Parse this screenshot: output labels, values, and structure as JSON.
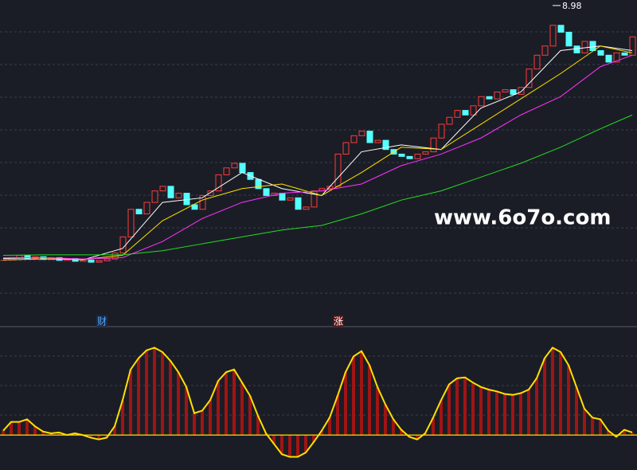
{
  "chart_data": [
    {
      "type": "candlestick",
      "values": [
        3.45,
        3.5,
        3.55,
        3.48,
        3.52,
        3.46,
        3.5,
        3.44,
        3.48,
        3.42,
        3.45,
        3.4,
        3.43,
        3.47,
        3.6,
        3.95,
        4.55,
        4.45,
        4.7,
        4.95,
        5.05,
        4.8,
        4.9,
        4.65,
        4.55,
        4.85,
        4.95,
        5.3,
        5.45,
        5.55,
        5.35,
        5.2,
        5.0,
        4.85,
        4.9,
        4.75,
        4.8,
        4.55,
        4.6,
        4.95,
        5.0,
        5.05,
        5.75,
        6.0,
        6.15,
        6.25,
        6.0,
        6.05,
        5.85,
        5.75,
        5.7,
        5.65,
        5.75,
        5.8,
        6.1,
        6.4,
        6.55,
        6.7,
        6.6,
        6.8,
        7.0,
        6.95,
        7.1,
        7.15,
        7.05,
        7.2,
        7.6,
        7.9,
        8.1,
        8.55,
        8.4,
        8.1,
        7.95,
        8.2,
        8.0,
        7.9,
        7.75,
        7.95,
        7.9,
        8.3
      ],
      "up_color": "#ff3b3b",
      "down_color": "#54ffff",
      "ylim": [
        2.0,
        9.1
      ],
      "ma_x": [
        0,
        5,
        10,
        15,
        20,
        25,
        30,
        35,
        40,
        45,
        50,
        55,
        60,
        65,
        70,
        75,
        79
      ],
      "ma": [
        {
          "color": "#ffffff",
          "values": [
            3.48,
            3.5,
            3.45,
            3.7,
            4.7,
            4.8,
            5.35,
            5.0,
            4.85,
            5.8,
            5.95,
            5.85,
            6.75,
            7.1,
            8.0,
            8.1,
            8.0
          ]
        },
        {
          "color": "#ffe000",
          "values": [
            3.45,
            3.47,
            3.46,
            3.55,
            4.3,
            4.75,
            5.0,
            5.1,
            4.85,
            5.35,
            5.9,
            5.85,
            6.4,
            6.95,
            7.5,
            8.1,
            7.95
          ]
        },
        {
          "color": "#ff33ff",
          "values": [
            3.5,
            3.5,
            3.47,
            3.5,
            3.85,
            4.35,
            4.7,
            4.9,
            4.95,
            5.1,
            5.5,
            5.75,
            6.1,
            6.6,
            7.0,
            7.65,
            7.9
          ]
        },
        {
          "color": "#22dd22",
          "values": [
            3.55,
            3.56,
            3.56,
            3.56,
            3.65,
            3.8,
            3.95,
            4.1,
            4.2,
            4.45,
            4.75,
            4.95,
            5.25,
            5.55,
            5.9,
            6.3,
            6.6
          ]
        }
      ],
      "annotation": {
        "x": 69,
        "value": 8.98
      },
      "watermark": "www.6o7o.com",
      "markers": [
        "财",
        "涨"
      ]
    },
    {
      "type": "bar",
      "values": [
        5,
        15,
        15,
        18,
        10,
        4,
        2,
        3,
        0,
        2,
        0,
        -3,
        -5,
        -3,
        10,
        40,
        75,
        88,
        97,
        100,
        95,
        85,
        72,
        55,
        25,
        28,
        40,
        62,
        72,
        75,
        60,
        45,
        22,
        2,
        -10,
        -22,
        -25,
        -25,
        -20,
        -8,
        5,
        20,
        45,
        72,
        90,
        96,
        80,
        55,
        35,
        18,
        6,
        -2,
        -5,
        2,
        20,
        40,
        58,
        65,
        66,
        60,
        55,
        52,
        50,
        47,
        46,
        48,
        52,
        65,
        88,
        100,
        95,
        80,
        55,
        30,
        20,
        18,
        5,
        -2,
        6,
        3
      ],
      "color": "#a01414",
      "line_color": "#ffe000",
      "ylim": [
        -40,
        115
      ]
    }
  ]
}
